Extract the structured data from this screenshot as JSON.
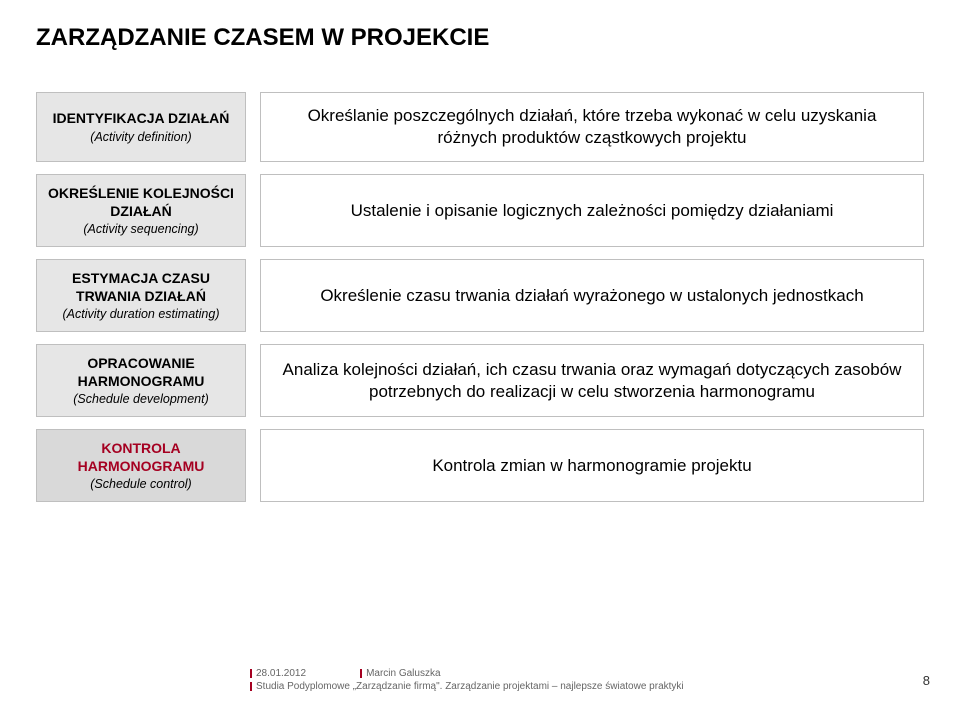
{
  "title": "ZARZĄDZANIE CZASEM W PROJEKCIE",
  "rows": [
    {
      "label_title": "IDENTYFIKACJA DZIAŁAŃ",
      "label_sub": "(Activity definition)",
      "label_title_color": "#000000",
      "desc": "Określanie poszczególnych działań, które trzeba wykonać w celu uzyskania różnych produktów cząstkowych projektu"
    },
    {
      "label_title": "OKREŚLENIE KOLEJNOŚCI DZIAŁAŃ",
      "label_sub": "(Activity sequencing)",
      "label_title_color": "#000000",
      "desc": "Ustalenie i opisanie logicznych zależności pomiędzy działaniami"
    },
    {
      "label_title": "ESTYMACJA CZASU TRWANIA DZIAŁAŃ",
      "label_sub": "(Activity duration estimating)",
      "label_title_color": "#000000",
      "desc": "Określenie czasu trwania działań wyrażonego w ustalonych jednostkach"
    },
    {
      "label_title": "OPRACOWANIE HARMONOGRAMU",
      "label_sub": "(Schedule development)",
      "label_title_color": "#000000",
      "desc": "Analiza  kolejności działań, ich czasu trwania oraz  wymagań dotyczących zasobów potrzebnych do realizacji w celu stworzenia harmonogramu"
    },
    {
      "label_title": "KONTROLA HARMONOGRAMU",
      "label_sub": "(Schedule control)",
      "label_title_color": "#a50021",
      "desc": "Kontrola zmian w harmonogramie projektu"
    }
  ],
  "footer": {
    "date": "28.01.2012",
    "author": "Marcin Galuszka",
    "course": "Studia Podyplomowe „Zarządzanie firmą\". Zarządzanie projektami – najlepsze światowe praktyki",
    "page": "8",
    "accent": "#a50021"
  },
  "colors": {
    "label_bg": "#e6e6e6",
    "label_bg_last": "#d9d9d9",
    "border": "#bfbfbf",
    "background": "#ffffff"
  }
}
